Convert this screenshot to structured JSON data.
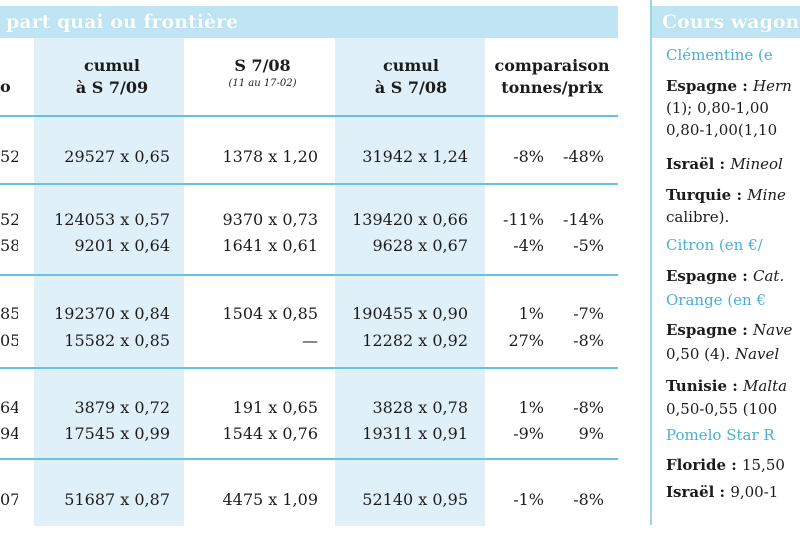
{
  "section_title": "part quai ou frontière",
  "header": {
    "col0": "o",
    "col1_line1": "cumul",
    "col1_line2": "à S 7/09",
    "col2_line1": "S 7/08",
    "col2_line2": "(11 au 17-02)",
    "col3_line1": "cumul",
    "col3_line2": "à S 7/08",
    "col4_line1": "comparaison",
    "col4_line2": "tonnes/prix"
  },
  "rows": [
    {
      "c0": "52",
      "c1": "29527 x 0,65",
      "c2": "1378 x 1,20",
      "c3": "31942 x 1,24",
      "c4": "-8%",
      "c5": "-48%"
    },
    {
      "c0": "52",
      "c1": "124053 x 0,57",
      "c2": "9370 x 0,73",
      "c3": "139420 x 0,66",
      "c4": "-11%",
      "c5": "-14%"
    },
    {
      "c0": "58",
      "c1": "9201 x 0,64",
      "c2": "1641 x 0,61",
      "c3": "9628 x 0,67",
      "c4": "-4%",
      "c5": "-5%"
    },
    {
      "c0": "85",
      "c1": "192370 x 0,84",
      "c2": "1504 x 0,85",
      "c3": "190455 x 0,90",
      "c4": "1%",
      "c5": "-7%"
    },
    {
      "c0": "05",
      "c1": "15582 x 0,85",
      "c2": "—",
      "c3": "12282 x 0,92",
      "c4": "27%",
      "c5": "-8%"
    },
    {
      "c0": "64",
      "c1": "3879 x 0,72",
      "c2": "191 x 0,65",
      "c3": "3828 x 0,78",
      "c4": "1%",
      "c5": "-8%"
    },
    {
      "c0": "94",
      "c1": "17545 x 0,99",
      "c2": "1544 x 0,76",
      "c3": "19311 x 0,91",
      "c4": "-9%",
      "c5": "9%"
    },
    {
      "c0": "07",
      "c1": "51687 x 0,87",
      "c2": "4475 x 1,09",
      "c3": "52140 x 0,95",
      "c4": "-1%",
      "c5": "-8%"
    }
  ],
  "side": {
    "title": "Cours wagon",
    "l1": "Clémentine (e",
    "l2a": "Espagne : ",
    "l2b": "Hern",
    "l3": "(1); 0,80-1,00",
    "l4": "0,80-1,00(1,10",
    "l5a": "Israël : ",
    "l5b": "Mineol",
    "l6a": "Turquie : ",
    "l6b": "Mine",
    "l7": "calibre).",
    "l8": "Citron (en €/",
    "l9a": "Espagne : ",
    "l9b": "Cat.",
    "l10": "Orange (en €",
    "l11a": "Espagne : ",
    "l11b": "Nave",
    "l12a": "0,50 (4). ",
    "l12b": "Navel",
    "l13a": "Tunisie : ",
    "l13b": "Malta",
    "l14": "0,50-0,55 (100",
    "l15": "Pomelo Star R",
    "l16a": "Floride : ",
    "l16b": "15,50",
    "l17a": "Israël : ",
    "l17b": "9,00-1"
  }
}
